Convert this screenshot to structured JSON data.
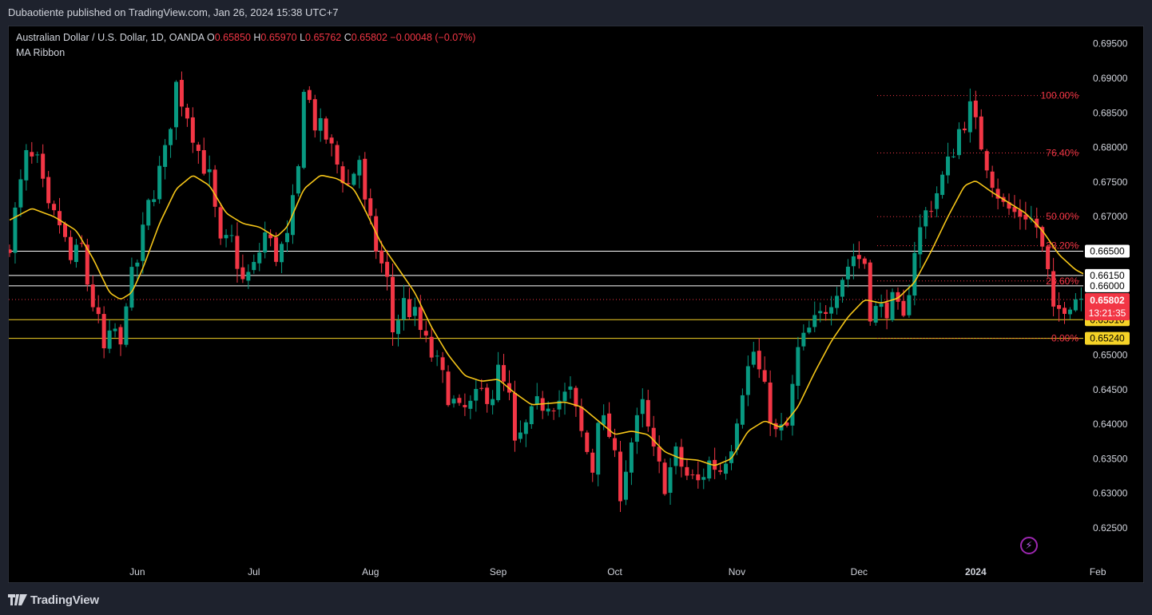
{
  "header": {
    "published": "Dubaotiente published on TradingView.com, Jan 26, 2024 15:38 UTC+7"
  },
  "legend": {
    "symbol": "Australian Dollar / U.S. Dollar, 1D, OANDA",
    "o_label": "O",
    "o_value": "0.65850",
    "h_label": "H",
    "h_value": "0.65970",
    "l_label": "L",
    "l_value": "0.65762",
    "c_label": "C",
    "c_value": "0.65802",
    "change": "−0.00048 (−0.07%)",
    "indicator": "MA Ribbon"
  },
  "footer": {
    "brand": "TradingView"
  },
  "chart_data": {
    "type": "candlestick",
    "symbol": "AUDUSD",
    "timeframe": "1D",
    "y_axis": {
      "ticks": [
        "0.69500",
        "0.69000",
        "0.68500",
        "0.68000",
        "0.67500",
        "0.67000",
        "0.66500",
        "0.66000",
        "0.65500",
        "0.65000",
        "0.64500",
        "0.64000",
        "0.63500",
        "0.63000",
        "0.62500"
      ],
      "ylim": [
        0.6205,
        0.6975
      ]
    },
    "x_axis": {
      "ticks": [
        {
          "label": "Jun",
          "bar": 23
        },
        {
          "label": "Jul",
          "bar": 44
        },
        {
          "label": "Aug",
          "bar": 65
        },
        {
          "label": "Sep",
          "bar": 88
        },
        {
          "label": "Oct",
          "bar": 109
        },
        {
          "label": "Nov",
          "bar": 131
        },
        {
          "label": "Dec",
          "bar": 153
        },
        {
          "label": "2024",
          "bar": 174,
          "bold": true
        },
        {
          "label": "Feb",
          "bar": 196
        }
      ]
    },
    "price_levels": [
      {
        "value": 0.665,
        "label": "0.66500",
        "color": "#ffffff"
      },
      {
        "value": 0.6615,
        "label": "0.66150",
        "color": "#ffffff"
      },
      {
        "value": 0.66,
        "label": "0.66000",
        "color": "#ffffff"
      },
      {
        "value": 0.6551,
        "label": "0.65510",
        "color": "#f5d327"
      },
      {
        "value": 0.6524,
        "label": "0.65240",
        "color": "#f5d327"
      }
    ],
    "last_price": {
      "value": 0.65802,
      "label": "0.65802",
      "countdown": "13:21:35"
    },
    "fibonacci": [
      {
        "level": "100.00%",
        "price": 0.6875
      },
      {
        "level": "76.40%",
        "price": 0.6792
      },
      {
        "level": "50.00%",
        "price": 0.67
      },
      {
        "level": "38.20%",
        "price": 0.6658
      },
      {
        "level": "23.60%",
        "price": 0.6607
      },
      {
        "level": "0.00%",
        "price": 0.6524
      }
    ],
    "anchors": [
      [
        0,
        0.6665
      ],
      [
        3,
        0.6785
      ],
      [
        5,
        0.6775
      ],
      [
        7,
        0.6705
      ],
      [
        9,
        0.669
      ],
      [
        11,
        0.6635
      ],
      [
        13,
        0.6655
      ],
      [
        14,
        0.6605
      ],
      [
        16,
        0.6545
      ],
      [
        17,
        0.6505
      ],
      [
        19,
        0.6535
      ],
      [
        20,
        0.6505
      ],
      [
        21,
        0.6585
      ],
      [
        23,
        0.6635
      ],
      [
        25,
        0.6715
      ],
      [
        28,
        0.679
      ],
      [
        30,
        0.689
      ],
      [
        32,
        0.685
      ],
      [
        34,
        0.6795
      ],
      [
        36,
        0.6755
      ],
      [
        38,
        0.6655
      ],
      [
        40,
        0.6665
      ],
      [
        42,
        0.6605
      ],
      [
        44,
        0.6625
      ],
      [
        46,
        0.6675
      ],
      [
        48,
        0.6645
      ],
      [
        50,
        0.6665
      ],
      [
        52,
        0.6765
      ],
      [
        53,
        0.6895
      ],
      [
        55,
        0.6835
      ],
      [
        57,
        0.6815
      ],
      [
        59,
        0.6775
      ],
      [
        61,
        0.6745
      ],
      [
        63,
        0.6785
      ],
      [
        64,
        0.6715
      ],
      [
        66,
        0.6655
      ],
      [
        68,
        0.6605
      ],
      [
        69,
        0.6535
      ],
      [
        71,
        0.6575
      ],
      [
        73,
        0.6555
      ],
      [
        75,
        0.6515
      ],
      [
        77,
        0.6485
      ],
      [
        79,
        0.6445
      ],
      [
        81,
        0.6415
      ],
      [
        83,
        0.6425
      ],
      [
        85,
        0.6445
      ],
      [
        87,
        0.6445
      ],
      [
        88,
        0.6475
      ],
      [
        90,
        0.6435
      ],
      [
        91,
        0.6365
      ],
      [
        93,
        0.6395
      ],
      [
        95,
        0.6425
      ],
      [
        97,
        0.6435
      ],
      [
        99,
        0.6435
      ],
      [
        101,
        0.6445
      ],
      [
        103,
        0.6385
      ],
      [
        105,
        0.6335
      ],
      [
        106,
        0.6415
      ],
      [
        108,
        0.6385
      ],
      [
        110,
        0.6305
      ],
      [
        112,
        0.6375
      ],
      [
        114,
        0.6425
      ],
      [
        116,
        0.6355
      ],
      [
        118,
        0.6315
      ],
      [
        120,
        0.6355
      ],
      [
        122,
        0.6325
      ],
      [
        124,
        0.6315
      ],
      [
        126,
        0.6345
      ],
      [
        128,
        0.6335
      ],
      [
        130,
        0.6375
      ],
      [
        132,
        0.6455
      ],
      [
        134,
        0.6505
      ],
      [
        136,
        0.6445
      ],
      [
        138,
        0.6385
      ],
      [
        140,
        0.6395
      ],
      [
        142,
        0.6505
      ],
      [
        144,
        0.6535
      ],
      [
        146,
        0.6555
      ],
      [
        148,
        0.6585
      ],
      [
        150,
        0.6615
      ],
      [
        152,
        0.6645
      ],
      [
        154,
        0.6635
      ],
      [
        155,
        0.6565
      ],
      [
        157,
        0.6565
      ],
      [
        159,
        0.6575
      ],
      [
        161,
        0.6545
      ],
      [
        163,
        0.6655
      ],
      [
        165,
        0.6705
      ],
      [
        167,
        0.6735
      ],
      [
        169,
        0.6775
      ],
      [
        171,
        0.6825
      ],
      [
        173,
        0.6855
      ],
      [
        175,
        0.6805
      ],
      [
        177,
        0.6755
      ],
      [
        179,
        0.6715
      ],
      [
        181,
        0.6705
      ],
      [
        183,
        0.6705
      ],
      [
        185,
        0.6685
      ],
      [
        187,
        0.6615
      ],
      [
        188,
        0.6555
      ],
      [
        190,
        0.6575
      ],
      [
        192,
        0.6585
      ],
      [
        194,
        0.6585
      ],
      [
        195,
        0.658
      ]
    ],
    "moving_average": [
      [
        0,
        0.6695
      ],
      [
        4,
        0.6712
      ],
      [
        8,
        0.67
      ],
      [
        12,
        0.668
      ],
      [
        15,
        0.664
      ],
      [
        18,
        0.659
      ],
      [
        20,
        0.658
      ],
      [
        22,
        0.659
      ],
      [
        24,
        0.6625
      ],
      [
        27,
        0.669
      ],
      [
        30,
        0.674
      ],
      [
        33,
        0.676
      ],
      [
        36,
        0.6745
      ],
      [
        39,
        0.6705
      ],
      [
        42,
        0.669
      ],
      [
        45,
        0.6685
      ],
      [
        48,
        0.667
      ],
      [
        50,
        0.6685
      ],
      [
        53,
        0.674
      ],
      [
        56,
        0.676
      ],
      [
        59,
        0.6755
      ],
      [
        62,
        0.674
      ],
      [
        64,
        0.671
      ],
      [
        67,
        0.666
      ],
      [
        70,
        0.6625
      ],
      [
        73,
        0.659
      ],
      [
        76,
        0.654
      ],
      [
        79,
        0.65
      ],
      [
        82,
        0.647
      ],
      [
        85,
        0.6462
      ],
      [
        88,
        0.6465
      ],
      [
        91,
        0.6445
      ],
      [
        94,
        0.6428
      ],
      [
        97,
        0.643
      ],
      [
        100,
        0.6432
      ],
      [
        103,
        0.6425
      ],
      [
        106,
        0.6405
      ],
      [
        109,
        0.6385
      ],
      [
        112,
        0.639
      ],
      [
        115,
        0.6385
      ],
      [
        118,
        0.636
      ],
      [
        121,
        0.635
      ],
      [
        124,
        0.6348
      ],
      [
        127,
        0.634
      ],
      [
        130,
        0.635
      ],
      [
        133,
        0.639
      ],
      [
        136,
        0.6405
      ],
      [
        139,
        0.6395
      ],
      [
        142,
        0.6425
      ],
      [
        145,
        0.6475
      ],
      [
        148,
        0.652
      ],
      [
        151,
        0.6555
      ],
      [
        154,
        0.658
      ],
      [
        157,
        0.6575
      ],
      [
        160,
        0.6582
      ],
      [
        163,
        0.6605
      ],
      [
        166,
        0.665
      ],
      [
        169,
        0.67
      ],
      [
        172,
        0.6745
      ],
      [
        174,
        0.6752
      ],
      [
        177,
        0.6735
      ],
      [
        180,
        0.672
      ],
      [
        183,
        0.6705
      ],
      [
        186,
        0.668
      ],
      [
        189,
        0.6645
      ],
      [
        192,
        0.6623
      ],
      [
        194,
        0.6615
      ]
    ]
  }
}
